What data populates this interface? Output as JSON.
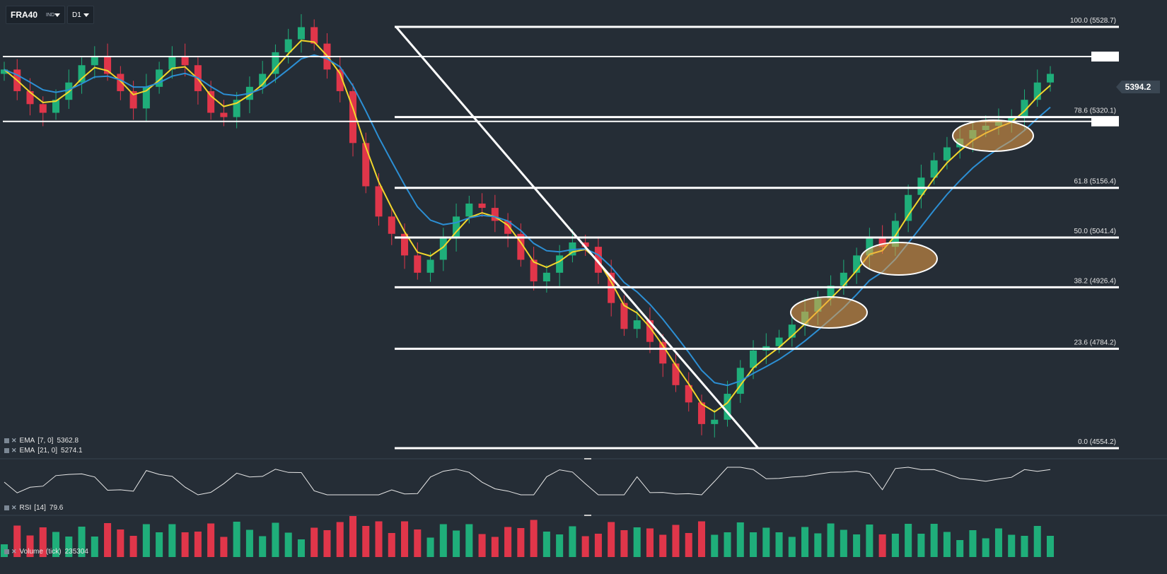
{
  "toolbar": {
    "symbol": "FRA40",
    "symbol_type": "IND",
    "timeframe": "D1"
  },
  "price": {
    "current_label": "5394.2",
    "colors": {
      "up": "#1fae7a",
      "down": "#e0364a",
      "ema7": "#f2d72c",
      "ema21": "#2c8fd4",
      "background": "#252d36"
    }
  },
  "fibonacci": {
    "levels": [
      {
        "label": "100.0 (5528.7)",
        "price": 5528.7
      },
      {
        "label": "78.6 (5320.1)",
        "price": 5320.1
      },
      {
        "label": "61.8 (5156.4)",
        "price": 5156.4
      },
      {
        "label": "50.0 (5041.4)",
        "price": 5041.4
      },
      {
        "label": "38.2 (4926.4)",
        "price": 4926.4
      },
      {
        "label": "23.6 (4784.2)",
        "price": 4784.2
      },
      {
        "label": "0.0 (4554.2)",
        "price": 4554.2
      }
    ]
  },
  "legend": {
    "ema7": {
      "label": "EMA",
      "params": "[7, 0]",
      "value": "5362.8"
    },
    "ema21": {
      "label": "EMA",
      "params": "[21, 0]",
      "value": "5274.1"
    },
    "rsi": {
      "label": "RSI",
      "params": "[14]",
      "value": "79.6"
    },
    "volume": {
      "label": "Volume",
      "params": "(tick)",
      "value": "235304"
    }
  },
  "chart_data": {
    "type": "candlestick",
    "symbol": "FRA40",
    "timeframe": "D1",
    "price_range": [
      4554.2,
      5528.7
    ],
    "current_price": 5394.2,
    "trend_sketch_prices": [
      5430,
      5380,
      5350,
      5330,
      5360,
      5400,
      5440,
      5460,
      5420,
      5380,
      5340,
      5390,
      5430,
      5460,
      5440,
      5380,
      5330,
      5320,
      5360,
      5390,
      5420,
      5470,
      5500,
      5528,
      5490,
      5430,
      5380,
      5260,
      5160,
      5090,
      5050,
      5000,
      4960,
      4990,
      5040,
      5090,
      5120,
      5110,
      5080,
      5050,
      4990,
      4940,
      4960,
      5000,
      5030,
      5020,
      4960,
      4890,
      4830,
      4850,
      4800,
      4750,
      4700,
      4660,
      4610,
      4620,
      4680,
      4740,
      4780,
      4790,
      4810,
      4840,
      4870,
      4900,
      4930,
      4960,
      5000,
      5040,
      5020,
      5080,
      5140,
      5180,
      5220,
      5250,
      5270,
      5290,
      5300,
      5310,
      5320,
      5360,
      5400,
      5420
    ],
    "resistance_levels": [
      5460.0,
      5310.0
    ],
    "highlight_zones": [
      "consolidation-1",
      "consolidation-2",
      "consolidation-3"
    ],
    "rsi": 79.6,
    "ema7": 5362.8,
    "ema21": 5274.1,
    "volume": 235304
  }
}
